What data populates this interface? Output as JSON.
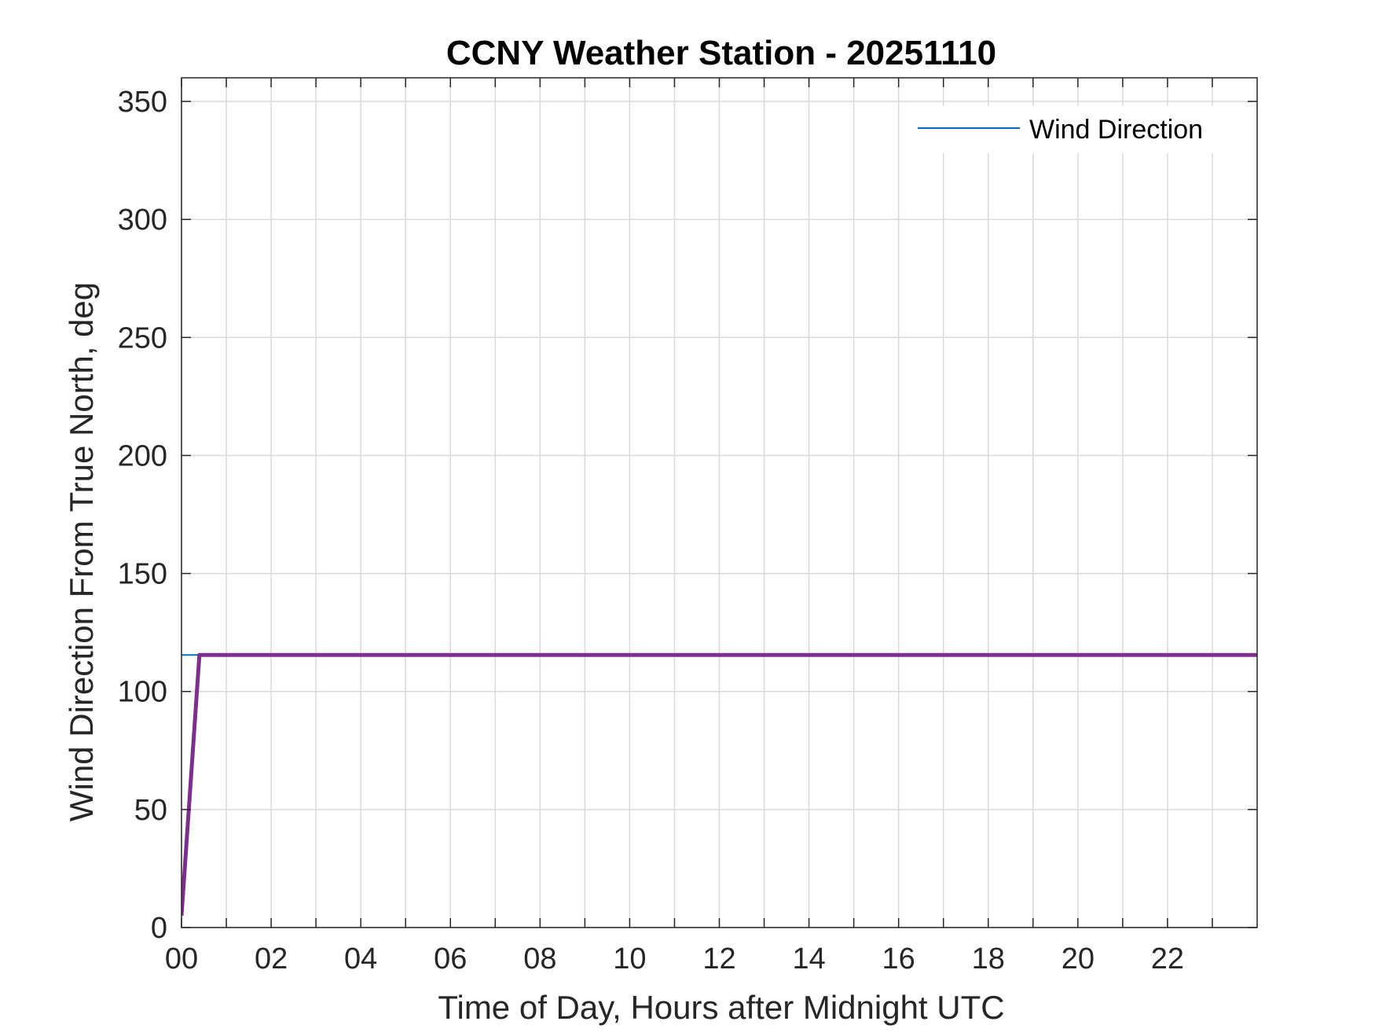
{
  "chart_data": {
    "type": "line",
    "title": "CCNY Weather Station - 20251110",
    "xlabel": "Time of Day, Hours after Midnight UTC",
    "ylabel": "Wind Direction From True North, deg",
    "xlim": [
      0,
      24
    ],
    "ylim": [
      0,
      360
    ],
    "xticks": [
      0,
      1,
      2,
      3,
      4,
      5,
      6,
      7,
      8,
      9,
      10,
      11,
      12,
      13,
      14,
      15,
      16,
      17,
      18,
      19,
      20,
      21,
      22,
      23
    ],
    "xtick_labels": [
      "00",
      "02",
      "04",
      "06",
      "08",
      "10",
      "12",
      "14",
      "16",
      "18",
      "20",
      "22"
    ],
    "xtick_label_values": [
      0,
      2,
      4,
      6,
      8,
      10,
      12,
      14,
      16,
      18,
      20,
      22
    ],
    "yticks": [
      0,
      50,
      100,
      150,
      200,
      250,
      300,
      350
    ],
    "ytick_labels": [
      "0",
      "50",
      "100",
      "150",
      "200",
      "250",
      "300",
      "350"
    ],
    "grid": true,
    "legend_position": "top-right",
    "series": [
      {
        "name": "Wind Direction",
        "color": "#0072BD",
        "legend": true,
        "x": [
          0,
          24
        ],
        "y": [
          115.5,
          115.5
        ]
      },
      {
        "color": "#7E2F8E",
        "legend": false,
        "x": [
          0,
          0.4,
          24
        ],
        "y": [
          5,
          115.5,
          115.5
        ]
      }
    ]
  }
}
